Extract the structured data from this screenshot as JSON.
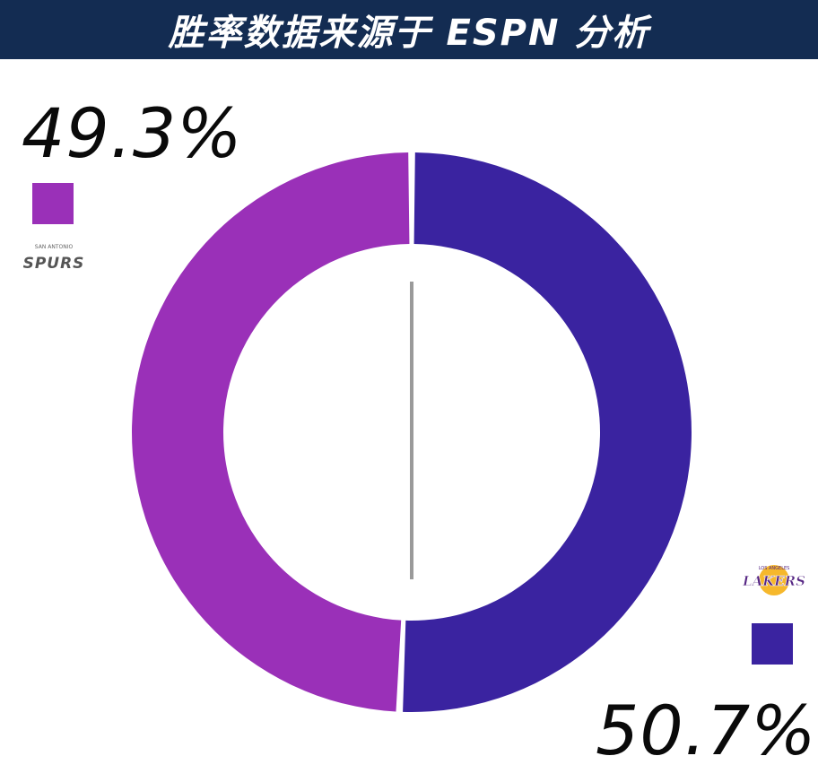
{
  "header": {
    "title": "胜率数据来源于 ESPN 分析",
    "background": "#132c52"
  },
  "chart_data": {
    "type": "pie",
    "title": "胜率数据来源于 ESPN 分析",
    "series": [
      {
        "label": "49.3%",
        "value": 49.3,
        "color": "#9a30b8"
      },
      {
        "label": "50.7%",
        "value": 50.7,
        "color": "#3a23a0"
      }
    ]
  },
  "logos": {
    "left": "SAN ANTONIO SPURS",
    "right": "LOS ANGELES LAKERS"
  }
}
